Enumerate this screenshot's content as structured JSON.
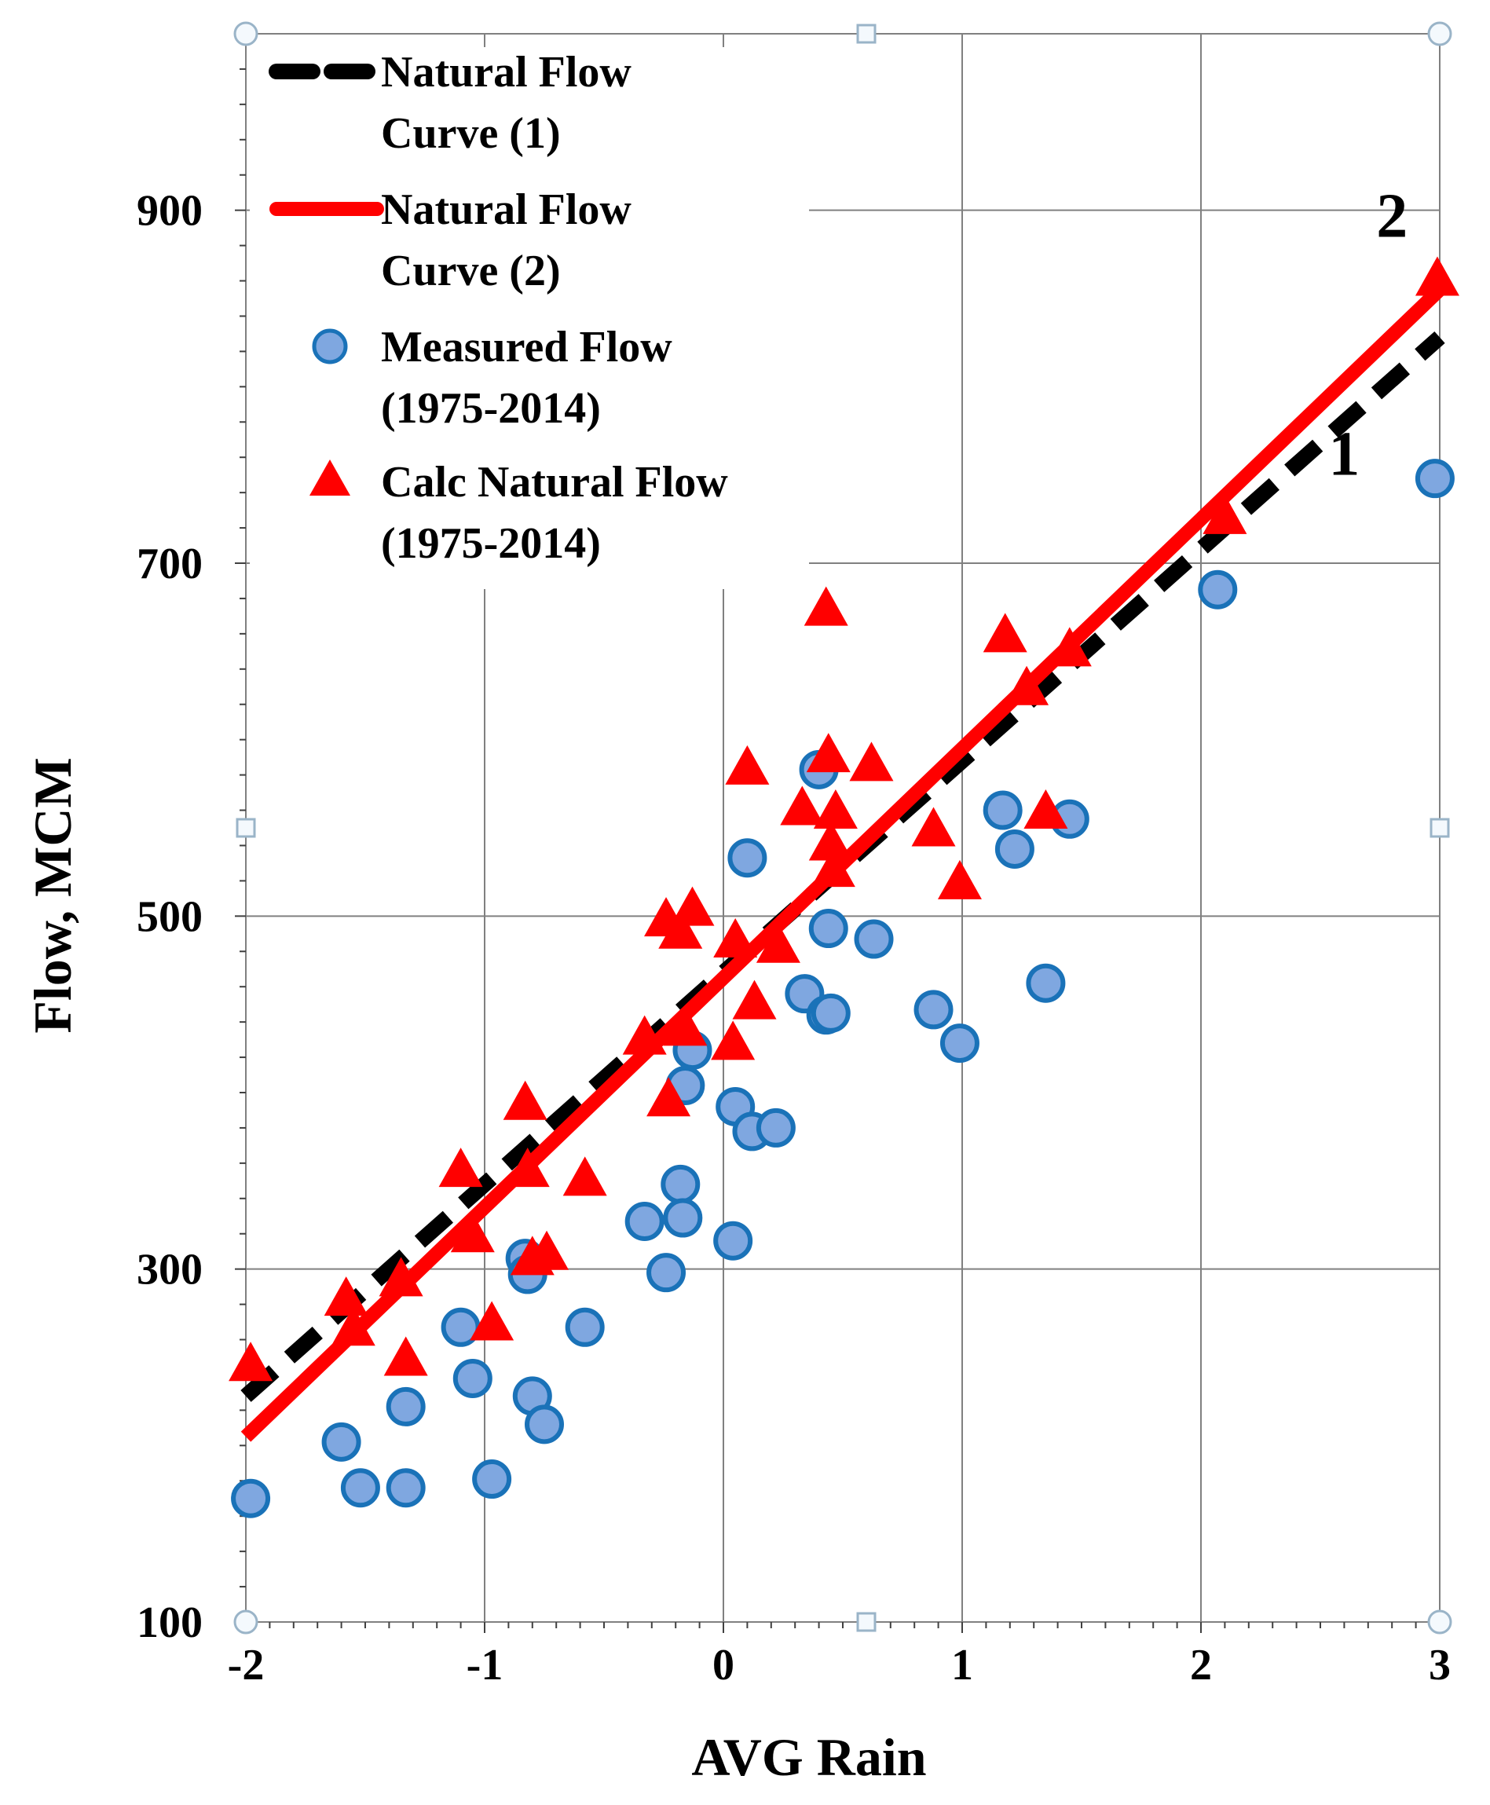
{
  "chart_data": {
    "type": "scatter",
    "title": "",
    "xlabel": "AVG Rain",
    "ylabel": "Flow, MCM",
    "xlim": [
      -2,
      3
    ],
    "ylim": [
      100,
      1000
    ],
    "xticks": [
      -2,
      -1,
      0,
      1,
      2,
      3
    ],
    "xtick_labels": [
      "-2",
      "-1",
      "0",
      "1",
      "2",
      "3"
    ],
    "yticks": [
      100,
      300,
      500,
      700,
      900
    ],
    "ytick_labels": [
      "100",
      "300",
      "500",
      "700",
      "900"
    ],
    "grid": true,
    "legend_position": "top-left",
    "series": [
      {
        "name": "Natural Flow Curve (1)",
        "legend_lines": [
          "Natural Flow",
          "Curve (1)"
        ],
        "kind": "line",
        "style": "dashed",
        "color": "#000000",
        "x": [
          -2,
          3
        ],
        "y": [
          228,
          828
        ]
      },
      {
        "name": "Natural Flow Curve (2)",
        "legend_lines": [
          "Natural Flow",
          "Curve (2)"
        ],
        "kind": "line",
        "style": "solid",
        "color": "#ff0000",
        "x": [
          -2,
          3
        ],
        "y": [
          205,
          855
        ]
      },
      {
        "name": "Measured Flow (1975-2014)",
        "legend_lines": [
          " Measured Flow",
          "(1975-2014)"
        ],
        "kind": "scatter",
        "marker": "circle",
        "color": "#7fa7e0",
        "edge_color": "#1a72b8",
        "points": [
          [
            -1.98,
            170
          ],
          [
            -1.6,
            202
          ],
          [
            -1.52,
            176
          ],
          [
            -1.33,
            176
          ],
          [
            -1.33,
            222
          ],
          [
            -1.1,
            267
          ],
          [
            -1.05,
            238
          ],
          [
            -0.97,
            181
          ],
          [
            -0.83,
            306
          ],
          [
            -0.82,
            297
          ],
          [
            -0.8,
            228
          ],
          [
            -0.75,
            212
          ],
          [
            -0.58,
            267
          ],
          [
            -0.33,
            327
          ],
          [
            -0.24,
            298
          ],
          [
            -0.18,
            348
          ],
          [
            -0.17,
            329
          ],
          [
            -0.16,
            404
          ],
          [
            -0.13,
            424
          ],
          [
            0.04,
            316
          ],
          [
            0.05,
            392
          ],
          [
            0.1,
            533
          ],
          [
            0.12,
            378
          ],
          [
            0.22,
            380
          ],
          [
            0.34,
            456
          ],
          [
            0.4,
            583
          ],
          [
            0.43,
            444
          ],
          [
            0.44,
            493
          ],
          [
            0.45,
            445
          ],
          [
            0.63,
            487
          ],
          [
            0.88,
            447
          ],
          [
            0.99,
            428
          ],
          [
            1.17,
            560
          ],
          [
            1.22,
            538
          ],
          [
            1.35,
            462
          ],
          [
            1.45,
            555
          ],
          [
            2.07,
            685
          ],
          [
            2.98,
            748
          ]
        ]
      },
      {
        "name": "Calc Natural Flow (1975-2014)",
        "legend_lines": [
          "Calc Natural Flow",
          "(1975-2014)"
        ],
        "kind": "scatter",
        "marker": "triangle",
        "color": "#ff0000",
        "points": [
          [
            -1.98,
            245
          ],
          [
            -1.58,
            282
          ],
          [
            -1.55,
            265
          ],
          [
            -1.35,
            293
          ],
          [
            -1.33,
            248
          ],
          [
            -1.1,
            355
          ],
          [
            -1.05,
            318
          ],
          [
            -0.97,
            268
          ],
          [
            -0.83,
            393
          ],
          [
            -0.82,
            355
          ],
          [
            -0.8,
            305
          ],
          [
            -0.74,
            308
          ],
          [
            -0.58,
            350
          ],
          [
            -0.33,
            430
          ],
          [
            -0.24,
            497
          ],
          [
            -0.23,
            395
          ],
          [
            -0.18,
            490
          ],
          [
            -0.16,
            435
          ],
          [
            -0.13,
            503
          ],
          [
            0.04,
            427
          ],
          [
            0.05,
            485
          ],
          [
            0.1,
            583
          ],
          [
            0.13,
            450
          ],
          [
            0.23,
            482
          ],
          [
            0.33,
            560
          ],
          [
            0.43,
            673
          ],
          [
            0.44,
            590
          ],
          [
            0.45,
            540
          ],
          [
            0.46,
            525
          ],
          [
            0.47,
            558
          ],
          [
            0.62,
            585
          ],
          [
            0.88,
            548
          ],
          [
            0.99,
            518
          ],
          [
            1.18,
            658
          ],
          [
            1.27,
            628
          ],
          [
            1.35,
            558
          ],
          [
            1.45,
            650
          ],
          [
            2.1,
            725
          ],
          [
            2.99,
            860
          ]
        ]
      }
    ],
    "annotations": [
      {
        "text": "1",
        "x": 2.6,
        "y": 750
      },
      {
        "text": "2",
        "x": 2.8,
        "y": 885
      }
    ]
  }
}
